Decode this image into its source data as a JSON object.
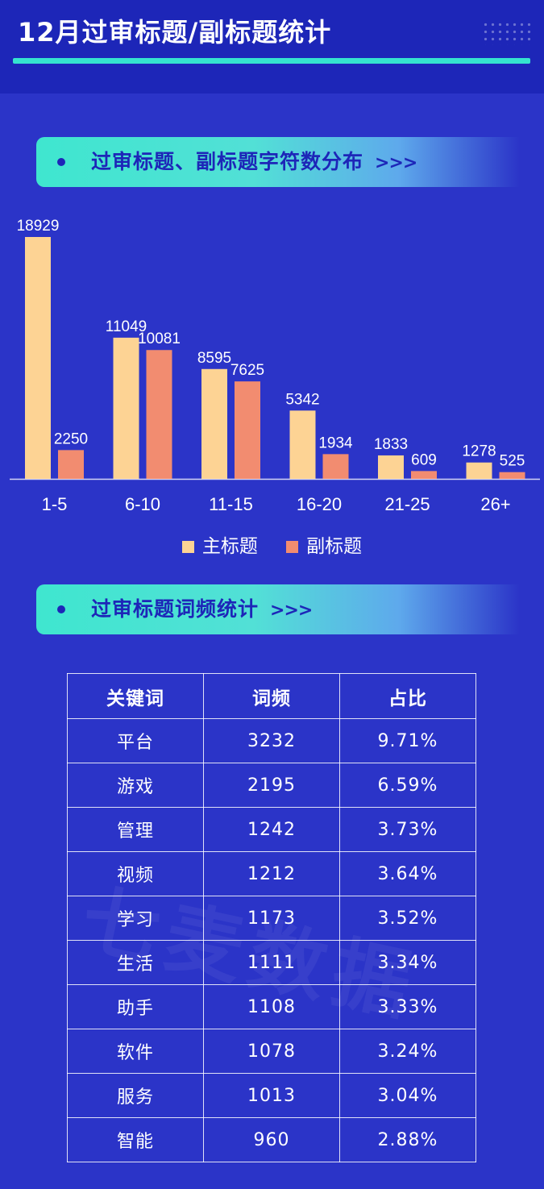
{
  "header": {
    "title": "12月过审标题/副标题统计"
  },
  "sections": {
    "distribution": {
      "label": "过审标题、副标题字符数分布",
      "arrows": ">>>"
    },
    "frequency": {
      "label": "过审标题词频统计",
      "arrows": ">>>"
    }
  },
  "chart_data": {
    "type": "bar",
    "categories": [
      "1-5",
      "6-10",
      "11-15",
      "16-20",
      "21-25",
      "26+"
    ],
    "series": [
      {
        "name": "主标题",
        "color": "#fdd394",
        "values": [
          18929,
          11049,
          8595,
          5342,
          1833,
          1278
        ]
      },
      {
        "name": "副标题",
        "color": "#f28c70",
        "values": [
          2250,
          10081,
          7625,
          1934,
          609,
          525
        ]
      }
    ],
    "ylim": [
      0,
      18929
    ],
    "grid": false,
    "legend": "bottom",
    "data_labels": true
  },
  "legend": {
    "main": "主标题",
    "sub": "副标题"
  },
  "table": {
    "headers": [
      "关键词",
      "词频",
      "占比"
    ],
    "rows": [
      [
        "平台",
        "3232",
        "9.71%"
      ],
      [
        "游戏",
        "2195",
        "6.59%"
      ],
      [
        "管理",
        "1242",
        "3.73%"
      ],
      [
        "视频",
        "1212",
        "3.64%"
      ],
      [
        "学习",
        "1173",
        "3.52%"
      ],
      [
        "生活",
        "1111",
        "3.34%"
      ],
      [
        "助手",
        "1108",
        "3.33%"
      ],
      [
        "软件",
        "1078",
        "3.24%"
      ],
      [
        "服务",
        "1013",
        "3.04%"
      ],
      [
        "智能",
        "960",
        "2.88%"
      ]
    ]
  },
  "watermark": "七麦数据",
  "colors": {
    "background": "#2b34c8",
    "top_bar": "#1d26b8",
    "accent": "#35e3cf"
  }
}
